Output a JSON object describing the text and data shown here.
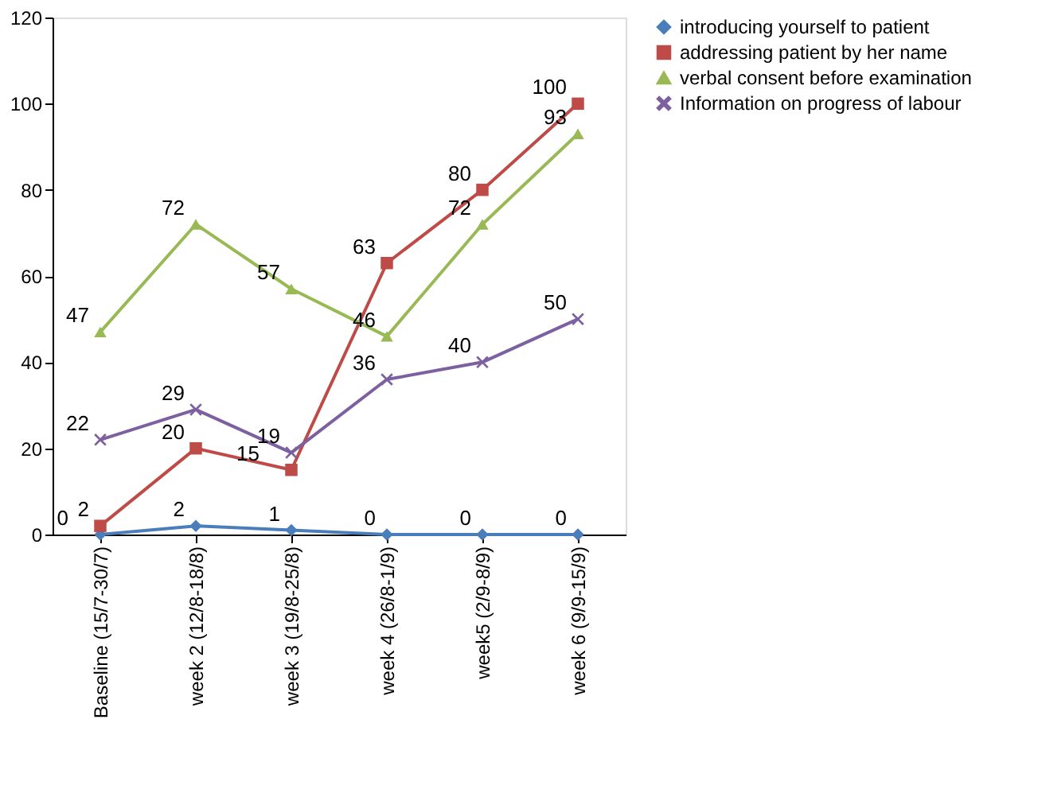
{
  "chart_data": {
    "type": "line",
    "categories": [
      "Baseline (15/7-30/7)",
      "week 2 (12/8-18/8)",
      "week 3 (19/8-25/8)",
      "week 4 (26/8-1/9)",
      "week5 (2/9-8/9)",
      "week 6 (9/9-15/9)"
    ],
    "series": [
      {
        "name": "introducing  yourself to patient",
        "color": "#4a7ebb",
        "marker": "diamond",
        "values": [
          0,
          2,
          1,
          0,
          0,
          0
        ]
      },
      {
        "name": "addressing patient by her name",
        "color": "#be4b48",
        "marker": "square",
        "values": [
          2,
          20,
          15,
          63,
          80,
          100
        ]
      },
      {
        "name": "verbal consent before examination",
        "color": "#98b954",
        "marker": "triangle",
        "values": [
          47,
          72,
          57,
          46,
          72,
          93
        ]
      },
      {
        "name": "Information on progress of labour",
        "color": "#7d60a0",
        "marker": "cross",
        "values": [
          22,
          29,
          19,
          36,
          40,
          50
        ]
      }
    ],
    "ylim": [
      0,
      120
    ],
    "yticks": [
      0,
      20,
      40,
      60,
      80,
      100,
      120
    ],
    "grid": false,
    "legend": "right",
    "data_labels": true,
    "line_style": "solid"
  }
}
